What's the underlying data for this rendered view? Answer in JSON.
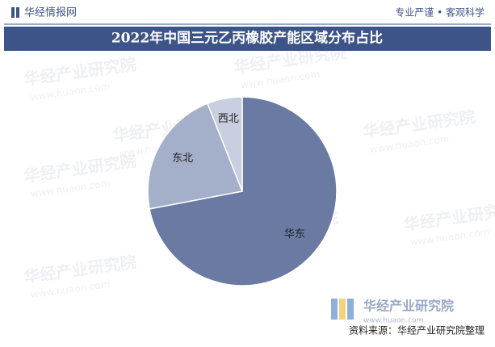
{
  "header": {
    "logo": "华经情报网",
    "slogan": "专业严谨 • 客观科学"
  },
  "chart_data": {
    "type": "pie",
    "title": "2022年中国三元乙丙橡胶产能区域分布占比",
    "categories": [
      "华东",
      "东北",
      "西北"
    ],
    "values": [
      72,
      22,
      6
    ],
    "colors": [
      "#6a7aa3",
      "#a4afc9",
      "#c9cfe0"
    ],
    "start_angle": 0,
    "direction": "clockwise"
  },
  "watermark": {
    "name": "华经产业研究院",
    "url": "www.huaon.com"
  },
  "footer": {
    "source": "资料来源：华经产业研究院整理"
  }
}
